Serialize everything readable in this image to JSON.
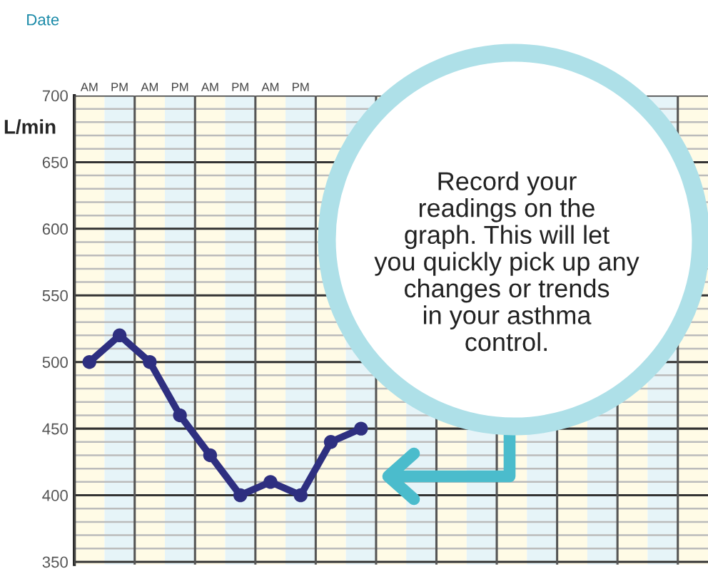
{
  "chart_data": {
    "type": "line",
    "xlabel": "Date",
    "ylabel": "L/min",
    "categories": [
      "AM",
      "PM",
      "AM",
      "PM",
      "AM",
      "PM",
      "AM",
      "PM",
      null,
      null,
      null,
      null,
      null,
      null,
      null,
      null,
      null,
      null,
      null,
      null,
      null
    ],
    "series": [
      {
        "color": "#2e2f80",
        "values": [
          500,
          520,
          500,
          460,
          430,
          400,
          410,
          400,
          440,
          450,
          null,
          null,
          null,
          null,
          null,
          null,
          null,
          null,
          null,
          null,
          null
        ]
      }
    ],
    "ylim": [
      348,
      700
    ],
    "yticks": [
      350,
      {
        "value": 360,
        "label": null
      },
      {
        "value": 370,
        "label": null
      },
      {
        "value": 380,
        "label": null
      },
      {
        "value": 390,
        "label": null
      },
      400,
      {
        "value": 410,
        "label": null
      },
      {
        "value": 420,
        "label": null
      },
      {
        "value": 430,
        "label": null
      },
      {
        "value": 440,
        "label": null
      },
      450,
      {
        "value": 460,
        "label": null
      },
      {
        "value": 470,
        "label": null
      },
      {
        "value": 480,
        "label": null
      },
      {
        "value": 490,
        "label": null
      },
      500,
      {
        "value": 510,
        "label": null
      },
      {
        "value": 520,
        "label": null
      },
      {
        "value": 530,
        "label": null
      },
      {
        "value": 540,
        "label": null
      },
      550,
      {
        "value": 560,
        "label": null
      },
      {
        "value": 570,
        "label": null
      },
      {
        "value": 580,
        "label": null
      },
      {
        "value": 590,
        "label": null
      },
      600,
      {
        "value": 610,
        "label": null
      },
      {
        "value": 620,
        "label": null
      },
      {
        "value": 630,
        "label": null
      },
      {
        "value": 640,
        "label": null
      },
      650,
      {
        "value": 660,
        "label": null
      },
      {
        "value": 670,
        "label": null
      },
      {
        "value": 680,
        "label": null
      },
      {
        "value": 690,
        "label": null
      },
      700
    ],
    "grid": true,
    "marker": "circle",
    "line_style": "solid",
    "legend": false,
    "annotations": [
      "Record your\nreadings on the\ngraph. This will let\nyou quickly pick up any\nchanges or trends\nin your asthma\ncontrol."
    ]
  }
}
